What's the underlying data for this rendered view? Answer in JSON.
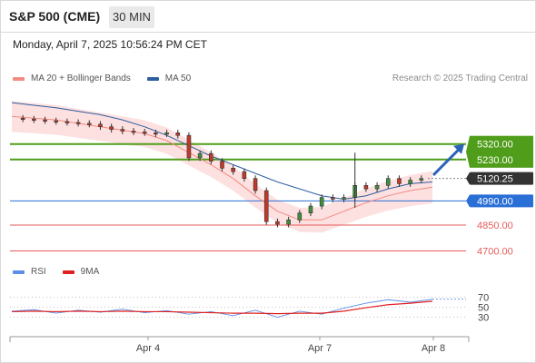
{
  "header": {
    "title": "S&P 500 (CME)",
    "interval": "30 MIN",
    "timestamp": "Monday, April 7, 2025 10:56:24 PM CET"
  },
  "price_legend": {
    "items": [
      {
        "label": "MA 20 + Bollinger Bands",
        "color": "#f28b82"
      },
      {
        "label": "MA 50",
        "color": "#2e5e9e"
      }
    ],
    "credit": "Research © 2025 Trading Central"
  },
  "rsi_legend": {
    "items": [
      {
        "label": "RSI",
        "color": "#5b8ee6"
      },
      {
        "label": "9MA",
        "color": "#e02020"
      }
    ]
  },
  "colors": {
    "resistance": "#4f9d1a",
    "pivot": "#2a6fd6",
    "support": "#e65c5c",
    "current_price": "#333333",
    "bollinger_fill": "#fde0e0",
    "candle_up": "#3f8f3f",
    "candle_down": "#c0392b",
    "arrow": "#2c63b8"
  },
  "chart_data": [
    {
      "type": "line",
      "panel": "price",
      "x_ticks": [
        "Apr 4",
        "Apr 7",
        "Apr 8"
      ],
      "ylim": [
        4650,
        5650
      ],
      "levels": [
        {
          "label": "5320.00",
          "value": 5320,
          "kind": "resistance"
        },
        {
          "label": "5230.00",
          "value": 5230,
          "kind": "resistance"
        },
        {
          "label": "5120.25",
          "value": 5120.25,
          "kind": "current"
        },
        {
          "label": "4990.00",
          "value": 4990,
          "kind": "pivot"
        },
        {
          "label": "4850.00",
          "value": 4850,
          "kind": "support"
        },
        {
          "label": "4700.00",
          "value": 4700,
          "kind": "support"
        }
      ],
      "series": [
        {
          "name": "MA 50",
          "points": [
            [
              0,
              5560
            ],
            [
              20,
              5545
            ],
            [
              40,
              5530
            ],
            [
              60,
              5510
            ],
            [
              80,
              5490
            ],
            [
              100,
              5460
            ],
            [
              120,
              5420
            ],
            [
              140,
              5370
            ],
            [
              160,
              5310
            ],
            [
              180,
              5250
            ],
            [
              200,
              5200
            ],
            [
              220,
              5150
            ],
            [
              240,
              5100
            ],
            [
              260,
              5060
            ],
            [
              280,
              5020
            ],
            [
              300,
              5000
            ],
            [
              320,
              5020
            ],
            [
              340,
              5060
            ],
            [
              360,
              5090
            ],
            [
              380,
              5100
            ]
          ]
        },
        {
          "name": "MA 20",
          "points": [
            [
              0,
              5480
            ],
            [
              20,
              5470
            ],
            [
              40,
              5460
            ],
            [
              60,
              5440
            ],
            [
              80,
              5420
            ],
            [
              100,
              5400
            ],
            [
              120,
              5380
            ],
            [
              140,
              5340
            ],
            [
              160,
              5270
            ],
            [
              180,
              5200
            ],
            [
              200,
              5120
            ],
            [
              220,
              5020
            ],
            [
              240,
              4930
            ],
            [
              260,
              4880
            ],
            [
              280,
              4880
            ],
            [
              300,
              4930
            ],
            [
              320,
              4980
            ],
            [
              340,
              5020
            ],
            [
              360,
              5050
            ],
            [
              380,
              5070
            ]
          ]
        },
        {
          "name": "Close",
          "points": [
            [
              0,
              5470
            ],
            [
              10,
              5465
            ],
            [
              20,
              5460
            ],
            [
              30,
              5455
            ],
            [
              40,
              5450
            ],
            [
              50,
              5445
            ],
            [
              60,
              5440
            ],
            [
              70,
              5435
            ],
            [
              80,
              5420
            ],
            [
              90,
              5405
            ],
            [
              100,
              5395
            ],
            [
              110,
              5390
            ],
            [
              120,
              5385
            ],
            [
              130,
              5378
            ],
            [
              140,
              5385
            ],
            [
              150,
              5370
            ],
            [
              160,
              5240
            ],
            [
              170,
              5265
            ],
            [
              180,
              5220
            ],
            [
              190,
              5180
            ],
            [
              200,
              5160
            ],
            [
              210,
              5120
            ],
            [
              220,
              5050
            ],
            [
              230,
              4870
            ],
            [
              240,
              4855
            ],
            [
              250,
              4880
            ],
            [
              260,
              4920
            ],
            [
              270,
              4960
            ],
            [
              280,
              5010
            ],
            [
              290,
              5000
            ],
            [
              300,
              5010
            ],
            [
              310,
              5080
            ],
            [
              320,
              5060
            ],
            [
              330,
              5080
            ],
            [
              340,
              5120
            ],
            [
              350,
              5090
            ],
            [
              360,
              5110
            ],
            [
              370,
              5120
            ]
          ]
        }
      ],
      "forecast_arrow": {
        "from": 5140,
        "to": 5320
      }
    },
    {
      "type": "line",
      "panel": "rsi",
      "ylim": [
        0,
        100
      ],
      "y_ticks": [
        "70",
        "50",
        "30"
      ],
      "series": [
        {
          "name": "RSI",
          "points": [
            [
              0,
              42
            ],
            [
              20,
              45
            ],
            [
              40,
              38
            ],
            [
              60,
              44
            ],
            [
              80,
              40
            ],
            [
              100,
              46
            ],
            [
              120,
              39
            ],
            [
              140,
              43
            ],
            [
              160,
              36
            ],
            [
              180,
              41
            ],
            [
              200,
              33
            ],
            [
              220,
              44
            ],
            [
              240,
              30
            ],
            [
              260,
              42
            ],
            [
              280,
              36
            ],
            [
              300,
              48
            ],
            [
              320,
              58
            ],
            [
              340,
              65
            ],
            [
              360,
              60
            ],
            [
              380,
              66
            ]
          ]
        },
        {
          "name": "9MA",
          "points": [
            [
              0,
              41
            ],
            [
              20,
              42
            ],
            [
              40,
              41
            ],
            [
              60,
              42
            ],
            [
              80,
              41
            ],
            [
              100,
              42
            ],
            [
              120,
              41
            ],
            [
              140,
              41
            ],
            [
              160,
              40
            ],
            [
              180,
              39
            ],
            [
              200,
              38
            ],
            [
              220,
              38
            ],
            [
              240,
              37
            ],
            [
              260,
              38
            ],
            [
              280,
              38
            ],
            [
              300,
              42
            ],
            [
              320,
              49
            ],
            [
              340,
              55
            ],
            [
              360,
              58
            ],
            [
              380,
              62
            ]
          ]
        }
      ]
    }
  ]
}
